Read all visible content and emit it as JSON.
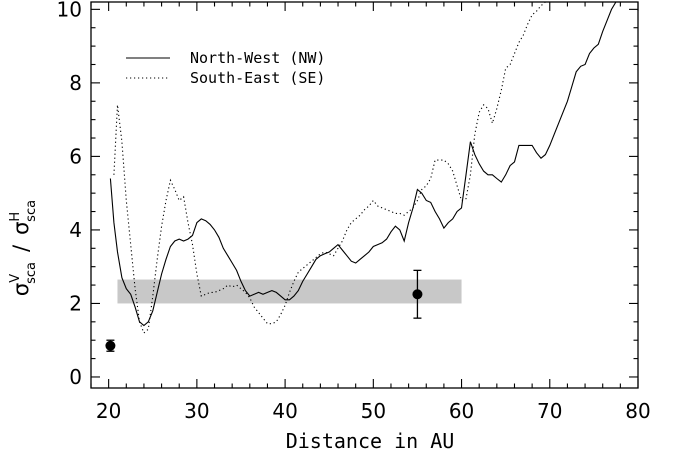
{
  "chart_data": {
    "type": "line",
    "xlabel": "Distance in AU",
    "ylabel_parts": [
      "σ",
      "V",
      "sca",
      "/",
      "σ",
      "H",
      "sca"
    ],
    "xlim": [
      18,
      80
    ],
    "ylim": [
      -0.3,
      10.2
    ],
    "xticks": [
      20,
      30,
      40,
      50,
      60,
      70,
      80
    ],
    "yticks": [
      0,
      2,
      4,
      6,
      8,
      10
    ],
    "grid": false,
    "legend_position": "top-left",
    "shaded_band": {
      "x": [
        21,
        60
      ],
      "y": [
        2.0,
        2.65
      ],
      "color": "#c8c8c8"
    },
    "series": [
      {
        "name": "North-West (NW)",
        "style": "solid",
        "points": [
          [
            20.2,
            5.4
          ],
          [
            20.6,
            4.2
          ],
          [
            21.0,
            3.4
          ],
          [
            21.5,
            2.7
          ],
          [
            22.0,
            2.4
          ],
          [
            22.5,
            2.25
          ],
          [
            23.0,
            1.9
          ],
          [
            23.5,
            1.5
          ],
          [
            24.0,
            1.4
          ],
          [
            24.5,
            1.5
          ],
          [
            25.0,
            1.8
          ],
          [
            25.5,
            2.3
          ],
          [
            26.0,
            2.8
          ],
          [
            26.5,
            3.2
          ],
          [
            27.0,
            3.55
          ],
          [
            27.5,
            3.7
          ],
          [
            28.0,
            3.75
          ],
          [
            28.5,
            3.7
          ],
          [
            29.0,
            3.75
          ],
          [
            29.5,
            3.85
          ],
          [
            30.0,
            4.2
          ],
          [
            30.5,
            4.3
          ],
          [
            31.0,
            4.25
          ],
          [
            31.5,
            4.15
          ],
          [
            32.0,
            4.0
          ],
          [
            32.5,
            3.8
          ],
          [
            33.0,
            3.5
          ],
          [
            33.5,
            3.3
          ],
          [
            34.0,
            3.1
          ],
          [
            34.5,
            2.9
          ],
          [
            35.0,
            2.6
          ],
          [
            35.5,
            2.35
          ],
          [
            36.0,
            2.2
          ],
          [
            36.5,
            2.25
          ],
          [
            37.0,
            2.3
          ],
          [
            37.5,
            2.25
          ],
          [
            38.0,
            2.3
          ],
          [
            38.5,
            2.35
          ],
          [
            39.0,
            2.3
          ],
          [
            39.5,
            2.2
          ],
          [
            40.0,
            2.1
          ],
          [
            40.5,
            2.1
          ],
          [
            41.0,
            2.2
          ],
          [
            41.5,
            2.35
          ],
          [
            42.0,
            2.6
          ],
          [
            42.5,
            2.8
          ],
          [
            43.0,
            3.0
          ],
          [
            43.5,
            3.2
          ],
          [
            44.0,
            3.3
          ],
          [
            44.5,
            3.35
          ],
          [
            45.0,
            3.4
          ],
          [
            45.5,
            3.5
          ],
          [
            46.0,
            3.6
          ],
          [
            46.5,
            3.45
          ],
          [
            47.0,
            3.3
          ],
          [
            47.5,
            3.15
          ],
          [
            48.0,
            3.1
          ],
          [
            48.5,
            3.2
          ],
          [
            49.0,
            3.3
          ],
          [
            49.5,
            3.4
          ],
          [
            50.0,
            3.55
          ],
          [
            50.5,
            3.6
          ],
          [
            51.0,
            3.65
          ],
          [
            51.5,
            3.75
          ],
          [
            52.0,
            3.95
          ],
          [
            52.5,
            4.1
          ],
          [
            53.0,
            4.0
          ],
          [
            53.5,
            3.7
          ],
          [
            54.0,
            4.2
          ],
          [
            54.5,
            4.6
          ],
          [
            55.0,
            5.1
          ],
          [
            55.5,
            5.0
          ],
          [
            56.0,
            4.8
          ],
          [
            56.5,
            4.75
          ],
          [
            57.0,
            4.5
          ],
          [
            57.5,
            4.3
          ],
          [
            58.0,
            4.05
          ],
          [
            58.5,
            4.2
          ],
          [
            59.0,
            4.3
          ],
          [
            59.5,
            4.5
          ],
          [
            60.0,
            4.6
          ],
          [
            60.5,
            5.5
          ],
          [
            61.0,
            6.4
          ],
          [
            61.5,
            6.05
          ],
          [
            62.0,
            5.8
          ],
          [
            62.5,
            5.6
          ],
          [
            63.0,
            5.5
          ],
          [
            63.5,
            5.5
          ],
          [
            64.0,
            5.4
          ],
          [
            64.5,
            5.3
          ],
          [
            65.0,
            5.5
          ],
          [
            65.5,
            5.75
          ],
          [
            66.0,
            5.85
          ],
          [
            66.5,
            6.3
          ],
          [
            67.0,
            6.3
          ],
          [
            67.5,
            6.3
          ],
          [
            68.0,
            6.3
          ],
          [
            68.5,
            6.1
          ],
          [
            69.0,
            5.95
          ],
          [
            69.5,
            6.05
          ],
          [
            70.0,
            6.3
          ],
          [
            70.5,
            6.6
          ],
          [
            71.0,
            6.9
          ],
          [
            71.5,
            7.2
          ],
          [
            72.0,
            7.5
          ],
          [
            72.5,
            7.9
          ],
          [
            73.0,
            8.3
          ],
          [
            73.5,
            8.45
          ],
          [
            74.0,
            8.5
          ],
          [
            74.5,
            8.8
          ],
          [
            75.0,
            8.95
          ],
          [
            75.5,
            9.05
          ],
          [
            76.0,
            9.4
          ],
          [
            76.5,
            9.7
          ],
          [
            77.0,
            10.0
          ],
          [
            77.5,
            10.2
          ]
        ]
      },
      {
        "name": "South-East (SE)",
        "style": "dotted",
        "points": [
          [
            20.6,
            5.5
          ],
          [
            21.0,
            7.4
          ],
          [
            21.5,
            6.4
          ],
          [
            22.0,
            4.8
          ],
          [
            22.5,
            3.6
          ],
          [
            23.0,
            2.4
          ],
          [
            23.5,
            1.5
          ],
          [
            24.0,
            1.2
          ],
          [
            24.5,
            1.3
          ],
          [
            25.0,
            2.2
          ],
          [
            25.5,
            3.2
          ],
          [
            26.0,
            4.1
          ],
          [
            26.5,
            4.8
          ],
          [
            27.0,
            5.35
          ],
          [
            27.5,
            5.1
          ],
          [
            28.0,
            4.8
          ],
          [
            28.5,
            4.9
          ],
          [
            29.0,
            4.2
          ],
          [
            29.5,
            3.6
          ],
          [
            30.0,
            2.8
          ],
          [
            30.5,
            2.2
          ],
          [
            31.0,
            2.25
          ],
          [
            31.5,
            2.3
          ],
          [
            32.0,
            2.3
          ],
          [
            32.5,
            2.35
          ],
          [
            33.0,
            2.4
          ],
          [
            33.5,
            2.5
          ],
          [
            34.0,
            2.45
          ],
          [
            34.5,
            2.5
          ],
          [
            35.0,
            2.4
          ],
          [
            35.5,
            2.3
          ],
          [
            36.0,
            2.15
          ],
          [
            36.5,
            1.9
          ],
          [
            37.0,
            1.75
          ],
          [
            37.5,
            1.6
          ],
          [
            38.0,
            1.45
          ],
          [
            38.5,
            1.45
          ],
          [
            39.0,
            1.5
          ],
          [
            39.5,
            1.7
          ],
          [
            40.0,
            1.95
          ],
          [
            40.5,
            2.3
          ],
          [
            41.0,
            2.6
          ],
          [
            41.5,
            2.85
          ],
          [
            42.0,
            2.95
          ],
          [
            42.5,
            3.05
          ],
          [
            43.0,
            3.15
          ],
          [
            43.5,
            3.25
          ],
          [
            44.0,
            3.35
          ],
          [
            44.5,
            3.4
          ],
          [
            45.0,
            3.35
          ],
          [
            45.5,
            3.3
          ],
          [
            46.0,
            3.5
          ],
          [
            46.5,
            3.7
          ],
          [
            47.0,
            4.0
          ],
          [
            47.5,
            4.2
          ],
          [
            48.0,
            4.3
          ],
          [
            48.5,
            4.4
          ],
          [
            49.0,
            4.55
          ],
          [
            49.5,
            4.65
          ],
          [
            50.0,
            4.8
          ],
          [
            50.5,
            4.65
          ],
          [
            51.0,
            4.6
          ],
          [
            51.5,
            4.55
          ],
          [
            52.0,
            4.5
          ],
          [
            52.5,
            4.45
          ],
          [
            53.0,
            4.45
          ],
          [
            53.5,
            4.4
          ],
          [
            54.0,
            4.5
          ],
          [
            54.5,
            4.6
          ],
          [
            55.0,
            4.8
          ],
          [
            55.5,
            5.1
          ],
          [
            56.0,
            5.2
          ],
          [
            56.5,
            5.4
          ],
          [
            57.0,
            5.9
          ],
          [
            57.5,
            5.9
          ],
          [
            58.0,
            5.9
          ],
          [
            58.5,
            5.8
          ],
          [
            59.0,
            5.6
          ],
          [
            59.5,
            5.2
          ],
          [
            60.0,
            4.8
          ],
          [
            60.5,
            4.85
          ],
          [
            61.0,
            5.5
          ],
          [
            61.5,
            6.6
          ],
          [
            62.0,
            7.2
          ],
          [
            62.5,
            7.4
          ],
          [
            63.0,
            7.3
          ],
          [
            63.5,
            6.9
          ],
          [
            64.0,
            7.3
          ],
          [
            64.5,
            7.8
          ],
          [
            65.0,
            8.4
          ],
          [
            65.5,
            8.5
          ],
          [
            66.0,
            8.8
          ],
          [
            66.5,
            9.1
          ],
          [
            67.0,
            9.3
          ],
          [
            67.5,
            9.6
          ],
          [
            68.0,
            9.85
          ],
          [
            68.5,
            9.95
          ],
          [
            69.0,
            10.1
          ],
          [
            69.5,
            10.2
          ]
        ]
      }
    ],
    "error_points": [
      {
        "x": 20.2,
        "y": 0.85,
        "yerr": 0.15
      },
      {
        "x": 55.0,
        "y": 2.25,
        "yerr": 0.65
      }
    ]
  }
}
